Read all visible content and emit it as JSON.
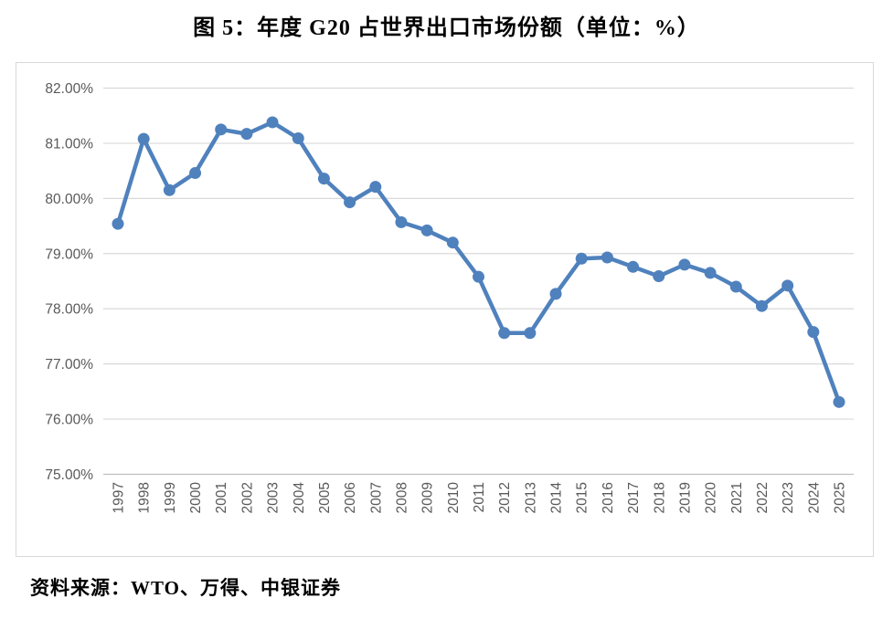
{
  "title": "图 5：年度 G20 占世界出口市场份额（单位：%）",
  "source": "资料来源：WTO、万得、中银证券",
  "colors": {
    "line": "#4F81BD",
    "marker": "#4F81BD",
    "gridline": "#D9D9D9",
    "axis_line": "#BFBFBF",
    "axis_text": "#595959",
    "frame_border": "#D9D9D9",
    "title_text": "#000000"
  },
  "chart_data": {
    "type": "line",
    "title": "图 5：年度 G20 占世界出口市场份额（单位：%）",
    "xlabel": "",
    "ylabel": "",
    "x": [
      "1997",
      "1998",
      "1999",
      "2000",
      "2001",
      "2002",
      "2003",
      "2004",
      "2005",
      "2006",
      "2007",
      "2008",
      "2009",
      "2010",
      "2011",
      "2012",
      "2013",
      "2014",
      "2015",
      "2016",
      "2017",
      "2018",
      "2019",
      "2020",
      "2021",
      "2022",
      "2023",
      "2024",
      "2025"
    ],
    "series": [
      {
        "values": [
          79.54,
          81.08,
          80.15,
          80.46,
          81.25,
          81.17,
          81.38,
          81.09,
          80.36,
          79.93,
          80.21,
          79.57,
          79.42,
          79.2,
          78.58,
          77.56,
          77.56,
          78.27,
          78.91,
          78.93,
          78.76,
          78.59,
          78.8,
          78.65,
          78.4,
          78.05,
          78.42,
          77.58,
          76.31
        ]
      }
    ],
    "ylim": [
      75,
      82
    ],
    "ytick_step": 1,
    "ytick_decimals": 2,
    "ytick_suffix": "%",
    "grid": true,
    "legend_position": "none",
    "marker": "circle",
    "x_tick_rotation": -90
  }
}
